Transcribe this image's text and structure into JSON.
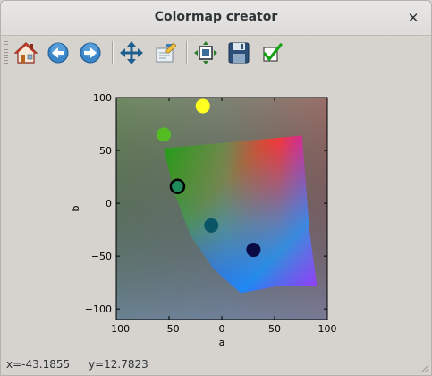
{
  "window": {
    "title": "Colormap creator",
    "close_glyph": "✕"
  },
  "toolbar": {
    "buttons": [
      {
        "icon": "home-icon",
        "label": "Home"
      },
      {
        "icon": "back-arrow-icon",
        "label": "Back"
      },
      {
        "icon": "forward-arrow-icon",
        "label": "Forward"
      },
      {
        "icon": "pan-icon",
        "label": "Pan"
      },
      {
        "icon": "zoom-icon",
        "label": "Zoom"
      },
      {
        "icon": "subplots-icon",
        "label": "Configure subplots"
      },
      {
        "icon": "save-icon",
        "label": "Save"
      },
      {
        "icon": "checkmark-icon",
        "label": "Apply"
      }
    ]
  },
  "status": {
    "x": "x=-43.1855",
    "y": "y=12.7823"
  },
  "chart_data": {
    "type": "scatter",
    "xlabel": "a",
    "ylabel": "b",
    "xlim": [
      -100,
      100
    ],
    "ylim": [
      -110,
      100
    ],
    "xticks": [
      "−100",
      "−50",
      "0",
      "50",
      "100"
    ],
    "yticks": [
      "100",
      "50",
      "0",
      "−50",
      "−100"
    ],
    "xtick_values": [
      -100,
      -50,
      0,
      50,
      100
    ],
    "ytick_values": [
      100,
      50,
      0,
      -50,
      -100
    ],
    "points": [
      {
        "x": -18,
        "y": 92,
        "color": "#ffff22",
        "selected": false
      },
      {
        "x": -55,
        "y": 65,
        "color": "#55bb22",
        "selected": false
      },
      {
        "x": -42,
        "y": 16,
        "color": "#1f8a5a",
        "selected": true
      },
      {
        "x": -10,
        "y": -21,
        "color": "#0a5566",
        "selected": false
      },
      {
        "x": 30,
        "y": -44,
        "color": "#0a0a44",
        "selected": false
      }
    ],
    "grid": false
  }
}
